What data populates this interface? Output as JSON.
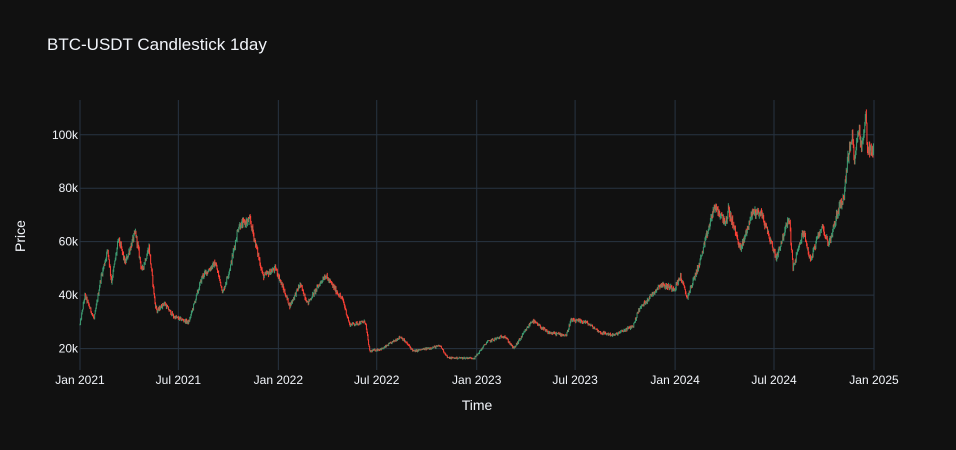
{
  "chart_data": {
    "type": "candlestick",
    "title": "BTC-USDT Candlestick 1day",
    "xlabel": "Time",
    "ylabel": "Price",
    "x_range": [
      "2021-01-01",
      "2025-01-01"
    ],
    "ylim": [
      12000,
      113000
    ],
    "x_ticks": [
      {
        "date": "2021-01-01",
        "label": "Jan 2021"
      },
      {
        "date": "2021-07-01",
        "label": "Jul 2021"
      },
      {
        "date": "2022-01-01",
        "label": "Jan 2022"
      },
      {
        "date": "2022-07-01",
        "label": "Jul 2022"
      },
      {
        "date": "2023-01-01",
        "label": "Jan 2023"
      },
      {
        "date": "2023-07-01",
        "label": "Jul 2023"
      },
      {
        "date": "2024-01-01",
        "label": "Jan 2024"
      },
      {
        "date": "2024-07-01",
        "label": "Jul 2024"
      },
      {
        "date": "2025-01-01",
        "label": "Jan 2025"
      }
    ],
    "y_ticks": [
      {
        "value": 20000,
        "label": "20k"
      },
      {
        "value": 40000,
        "label": "40k"
      },
      {
        "value": 60000,
        "label": "60k"
      },
      {
        "value": 80000,
        "label": "80k"
      },
      {
        "value": 100000,
        "label": "100k"
      }
    ],
    "grid": true,
    "increasing_color": "#3d9970",
    "decreasing_color": "#ff4136",
    "price_path": [
      [
        "2021-01-01",
        29000
      ],
      [
        "2021-01-10",
        40000
      ],
      [
        "2021-01-27",
        31000
      ],
      [
        "2021-02-08",
        46000
      ],
      [
        "2021-02-21",
        57000
      ],
      [
        "2021-02-28",
        45000
      ],
      [
        "2021-03-13",
        61000
      ],
      [
        "2021-03-25",
        52000
      ],
      [
        "2021-04-13",
        63500
      ],
      [
        "2021-04-25",
        49000
      ],
      [
        "2021-05-08",
        58000
      ],
      [
        "2021-05-19",
        37000
      ],
      [
        "2021-05-23",
        34000
      ],
      [
        "2021-06-05",
        37000
      ],
      [
        "2021-06-22",
        32000
      ],
      [
        "2021-07-20",
        29800
      ],
      [
        "2021-08-14",
        47000
      ],
      [
        "2021-09-07",
        52000
      ],
      [
        "2021-09-21",
        41000
      ],
      [
        "2021-10-05",
        51000
      ],
      [
        "2021-10-20",
        66000
      ],
      [
        "2021-11-10",
        68000
      ],
      [
        "2021-11-26",
        54000
      ],
      [
        "2021-12-04",
        47000
      ],
      [
        "2021-12-27",
        50000
      ],
      [
        "2022-01-22",
        36000
      ],
      [
        "2022-02-10",
        44000
      ],
      [
        "2022-02-24",
        37000
      ],
      [
        "2022-03-28",
        47500
      ],
      [
        "2022-04-30",
        38000
      ],
      [
        "2022-05-12",
        29000
      ],
      [
        "2022-06-10",
        30000
      ],
      [
        "2022-06-18",
        19000
      ],
      [
        "2022-07-12",
        20000
      ],
      [
        "2022-08-14",
        24500
      ],
      [
        "2022-09-07",
        19000
      ],
      [
        "2022-10-26",
        21000
      ],
      [
        "2022-11-09",
        16500
      ],
      [
        "2022-12-28",
        16500
      ],
      [
        "2023-01-20",
        22500
      ],
      [
        "2023-02-21",
        24800
      ],
      [
        "2023-03-10",
        20000
      ],
      [
        "2023-04-13",
        30500
      ],
      [
        "2023-05-12",
        26000
      ],
      [
        "2023-06-15",
        25000
      ],
      [
        "2023-06-23",
        30500
      ],
      [
        "2023-07-20",
        30000
      ],
      [
        "2023-08-17",
        26000
      ],
      [
        "2023-09-11",
        25000
      ],
      [
        "2023-10-16",
        28500
      ],
      [
        "2023-10-26",
        34500
      ],
      [
        "2023-12-05",
        44000
      ],
      [
        "2023-12-31",
        42500
      ],
      [
        "2024-01-11",
        47000
      ],
      [
        "2024-01-23",
        39000
      ],
      [
        "2024-02-15",
        52000
      ],
      [
        "2024-03-13",
        73000
      ],
      [
        "2024-04-05",
        67000
      ],
      [
        "2024-04-08",
        72000
      ],
      [
        "2024-05-01",
        57000
      ],
      [
        "2024-05-22",
        71000
      ],
      [
        "2024-06-07",
        71000
      ],
      [
        "2024-07-05",
        54000
      ],
      [
        "2024-07-29",
        69000
      ],
      [
        "2024-08-05",
        50000
      ],
      [
        "2024-08-24",
        64000
      ],
      [
        "2024-09-06",
        53000
      ],
      [
        "2024-09-27",
        66000
      ],
      [
        "2024-10-10",
        59000
      ],
      [
        "2024-10-29",
        73000
      ],
      [
        "2024-11-06",
        76000
      ],
      [
        "2024-11-13",
        90000
      ],
      [
        "2024-11-22",
        99000
      ],
      [
        "2024-11-26",
        91500
      ],
      [
        "2024-12-05",
        103000
      ],
      [
        "2024-12-09",
        94500
      ],
      [
        "2024-12-17",
        107000
      ],
      [
        "2024-12-20",
        95000
      ],
      [
        "2024-12-31",
        94000
      ]
    ]
  }
}
